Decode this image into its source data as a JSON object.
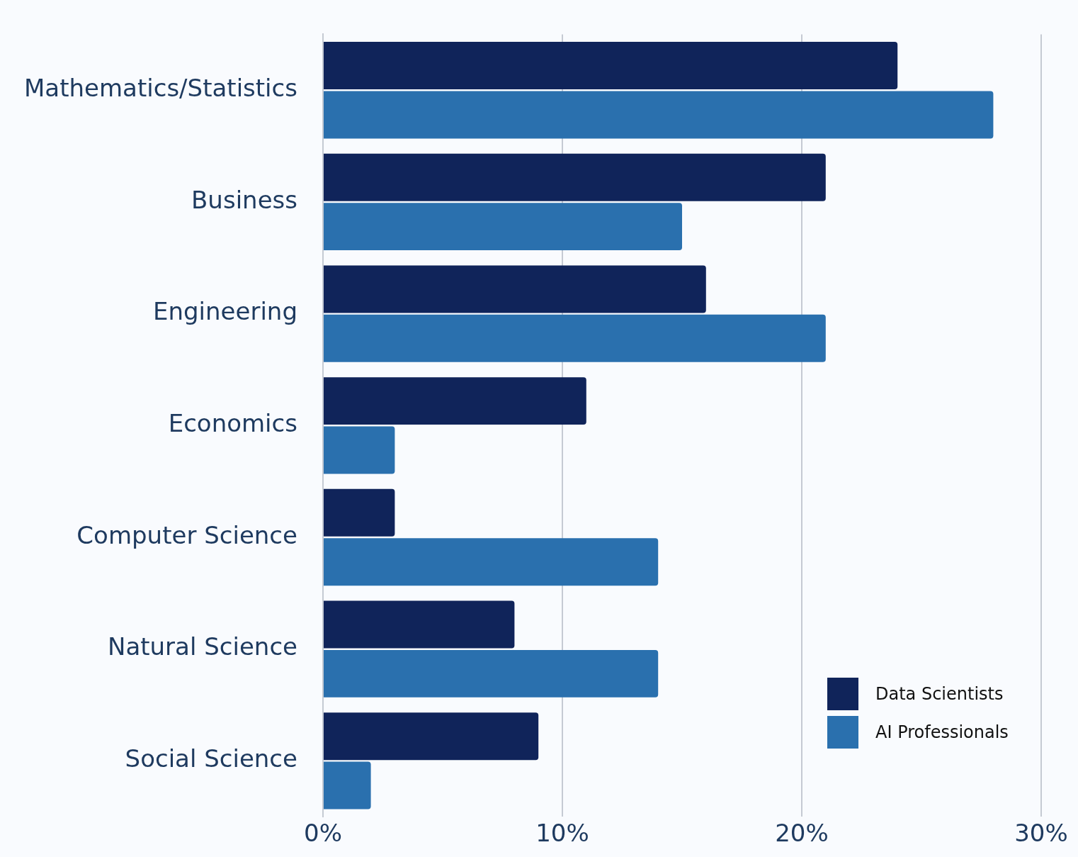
{
  "chart_data": {
    "type": "bar",
    "orientation": "horizontal",
    "categories": [
      "Mathematics/Statistics",
      "Business",
      "Engineering",
      "Economics",
      "Computer Science",
      "Natural Science",
      "Social Science"
    ],
    "series": [
      {
        "name": "Data Scientists",
        "color": "#10245a",
        "values": [
          24,
          21,
          16,
          11,
          3,
          8,
          9
        ]
      },
      {
        "name": "AI Professionals",
        "color": "#2a70ae",
        "values": [
          28,
          15,
          21,
          3,
          14,
          14,
          2
        ]
      }
    ],
    "xlim": [
      0,
      30
    ],
    "xticks": [
      {
        "value": 0,
        "label": "0%"
      },
      {
        "value": 10,
        "label": "10%"
      },
      {
        "value": 20,
        "label": "20%"
      },
      {
        "value": 30,
        "label": "30%"
      }
    ],
    "grid": "x",
    "legend": "bottom right"
  }
}
